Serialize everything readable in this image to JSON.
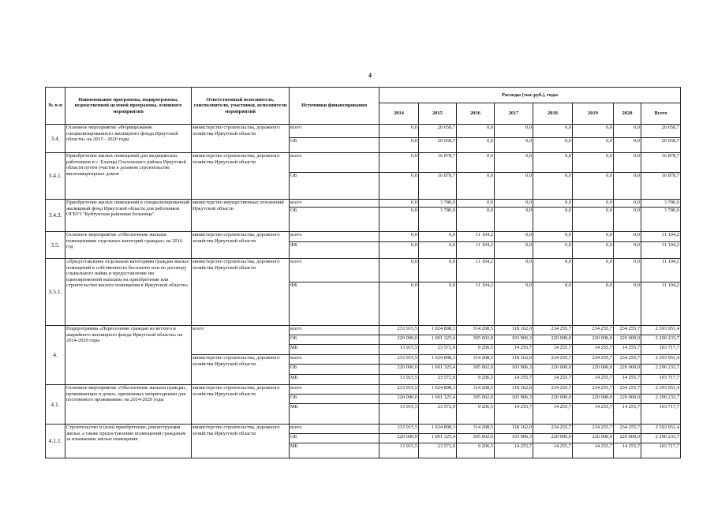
{
  "page_number": "4",
  "header": {
    "num": "№ п-п",
    "name": "Наименование программы, подпрограммы, ведомственной целевой программы, основного мероприятия",
    "responsible": "Ответственный исполнитель, соисполнители, участники, исполнители мероприятий",
    "source": "Источники финансирования",
    "expenses": "Расходы (тыс.руб.), годы",
    "years": [
      "2014",
      "2015",
      "2016",
      "2017",
      "2018",
      "2019",
      "2020",
      "Всего"
    ]
  },
  "rows": [
    {
      "num": "3.4.",
      "name": "Основное мероприятие «Формирование специализированного  жилищного фонда Иркутской области» на 2015 - 2020 годы",
      "groups": [
        {
          "responsible": "министерство строительства, дорожного хозяйства Иркутской области",
          "sources": [
            {
              "label": "всего",
              "values": [
                "0,0",
                "20 658,7",
                "0,0",
                "0,0",
                "0,0",
                "0,0",
                "0,0",
                "20 658,7"
              ]
            },
            {
              "label": "ОБ",
              "values": [
                "0,0",
                "20 658,7",
                "0,0",
                "0,0",
                "0,0",
                "0,0",
                "0,0",
                "20 658,7"
              ]
            }
          ]
        }
      ]
    },
    {
      "num": "3.4.1.",
      "name": "Приобретение жилых помещений для медицинских работников в с. Еланцы Ольхонского района Иркутской области путем участия в долевом строительстве многоквартирных домов",
      "groups": [
        {
          "responsible": "министерство строительства, дорожного хозяйства Иркутской области",
          "sources": [
            {
              "label": "всего",
              "values": [
                "0,0",
                "16 878,7",
                "0,0",
                "0,0",
                "0,0",
                "0,0",
                "0,0",
                "16 878,7"
              ]
            },
            {
              "label": "ОБ",
              "values": [
                "0,0",
                "16 878,7",
                "0,0",
                "0,0",
                "0,0",
                "0,0",
                "0,0",
                "16 878,7"
              ]
            }
          ]
        }
      ]
    },
    {
      "num": "3.4.2.",
      "name": "Приобретение жилых помещений в специализированный жилищный фонд Иркутской области для работников ОГБУЗ \"Куйтунская районная больница\"",
      "groups": [
        {
          "responsible": "министерство имущественных отношений Иркутской области",
          "sources": [
            {
              "label": "всего",
              "values": [
                "0,0",
                "3 780,0",
                "0,0",
                "0,0",
                "0,0",
                "0,0",
                "0,0",
                "3 780,0"
              ]
            },
            {
              "label": "ОБ",
              "values": [
                "0,0",
                "3 780,0",
                "0,0",
                "0,0",
                "0,0",
                "0,0",
                "0,0",
                "3 780,0"
              ]
            }
          ]
        }
      ]
    },
    {
      "num": "3.5.",
      "name": "Основное мероприятие «Обеспечение жильми помещениями отдельных категорий граждан» на 2016 год",
      "groups": [
        {
          "responsible": "министерство строительства, дорожного хозяйства Иркутской области",
          "sources": [
            {
              "label": "всего",
              "values": [
                "0,0",
                "0,0",
                "11 104,2",
                "0,0",
                "0,0",
                "0,0",
                "0,0",
                "11 104,2"
              ]
            },
            {
              "label": "ФБ",
              "values": [
                "0,0",
                "0,0",
                "11 104,2",
                "0,0",
                "0,0",
                "0,0",
                "0,0",
                "11 104,2"
              ]
            }
          ]
        }
      ]
    },
    {
      "num": "3.5.1.",
      "name": "«Предоставление отдельным категориям граждан жилых помещений в собственность бесплатно или по договору социального найма и предоставление им единовременной выплаты на приобретение или строительство жилого помещения в Иркутской области»",
      "groups": [
        {
          "responsible": "министерство строительства, дорожного хозяйства Иркутской области",
          "sources": [
            {
              "label": "всего",
              "values": [
                "0,0",
                "0,0",
                "11 104,2",
                "0,0",
                "0,0",
                "0,0",
                "0,0",
                "11 104,2"
              ]
            },
            {
              "label": "ФБ",
              "values": [
                "0,0",
                "0,0",
                "11 104,2",
                "0,0",
                "0,0",
                "0,0",
                "0,0",
                "11 104,2"
              ]
            }
          ]
        }
      ]
    },
    {
      "num": "4.",
      "name": "Подпрограмма «Переселение граждан из ветхого и аварийного жилищного фонда Иркутской области» на 2014-2020 годы",
      "groups": [
        {
          "responsible": "всего",
          "sources": [
            {
              "label": "всего",
              "values": [
                "233 915,5",
                "1 024 898,3",
                "314 208,5",
                "118 162,0",
                "234 255,7",
                "234 255,7",
                "234 255,7",
                "2 393 951,4"
              ]
            },
            {
              "label": "ОБ",
              "values": [
                "220 000,0",
                "1 001 325,4",
                "305 002,0",
                "103 906,3",
                "220 000,0",
                "220 000,0",
                "220 000,0",
                "2 290 233,7"
              ]
            },
            {
              "label": "МБ",
              "values": [
                "13 915,5",
                "23 572,9",
                "9 206,5",
                "14 255,7",
                "14 255,7",
                "14 255,7",
                "14 255,7",
                "103 717,7"
              ]
            }
          ]
        },
        {
          "responsible": "министерство строительства, дорожного хозяйства Иркутской области",
          "sources": [
            {
              "label": "всего",
              "values": [
                "233 915,5",
                "1 024 898,3",
                "314 208,5",
                "118 162,0",
                "234 255,7",
                "234 255,7",
                "234 255,7",
                "2 393 951,4"
              ]
            },
            {
              "label": "ОБ",
              "values": [
                "220 000,0",
                "1 001 325,4",
                "305 002,0",
                "103 906,3",
                "220 000,0",
                "220 000,0",
                "220 000,0",
                "2 290 233,7"
              ]
            },
            {
              "label": "МБ",
              "values": [
                "13 915,5",
                "23 572,9",
                "9 206,5",
                "14 255,7",
                "14 255,7",
                "14 255,7",
                "14 255,7",
                "103 717,7"
              ]
            }
          ]
        }
      ]
    },
    {
      "num": "4.1.",
      "name": "Основное мероприятие «Обеспечение жильем граждан, проживающих в домах, признанных непригодными для постоянного проживания» на 2014-2020 годы",
      "groups": [
        {
          "responsible": "министерство строительства, дорожного хозяйства Иркутской области",
          "sources": [
            {
              "label": "всего",
              "values": [
                "233 915,5",
                "1 024 898,3",
                "314 208,5",
                "118 162,0",
                "234 255,7",
                "234 255,7",
                "234 255,7",
                "2 393 951,4"
              ]
            },
            {
              "label": "ОБ",
              "values": [
                "220 000,0",
                "1 001 325,4",
                "305 002,0",
                "103 906,3",
                "220 000,0",
                "220 000,0",
                "220 000,0",
                "2 290 233,7"
              ]
            },
            {
              "label": "МБ",
              "values": [
                "13 915,5",
                "23 572,9",
                "9 206,5",
                "14 255,7",
                "14 255,7",
                "14 255,7",
                "14 255,7",
                "103 717,7"
              ]
            }
          ]
        }
      ]
    },
    {
      "num": "4.1.1.",
      "name": "Строительство и (или) приобретение, реконструкция жилья, а также предоставление возмещений гражданам за изымаемые жилые помещения",
      "groups": [
        {
          "responsible": "министерство строительства, дорожного хозяйства Иркутской области",
          "sources": [
            {
              "label": "всего",
              "values": [
                "233 915,5",
                "1 024 898,3",
                "314 208,5",
                "118 162,0",
                "234 255,7",
                "234 255,7",
                "234 255,7",
                "2 393 951,4"
              ]
            },
            {
              "label": "ОБ",
              "values": [
                "220 000,0",
                "1 001 325,4",
                "305 002,0",
                "103 906,3",
                "220 000,0",
                "220 000,0",
                "220 000,0",
                "2 290 233,7"
              ]
            },
            {
              "label": "МБ",
              "values": [
                "13 915,5",
                "23 572,9",
                "9 206,5",
                "14 255,7",
                "14 255,7",
                "14 255,7",
                "14 255,7",
                "103 717,7"
              ]
            }
          ]
        }
      ]
    }
  ]
}
